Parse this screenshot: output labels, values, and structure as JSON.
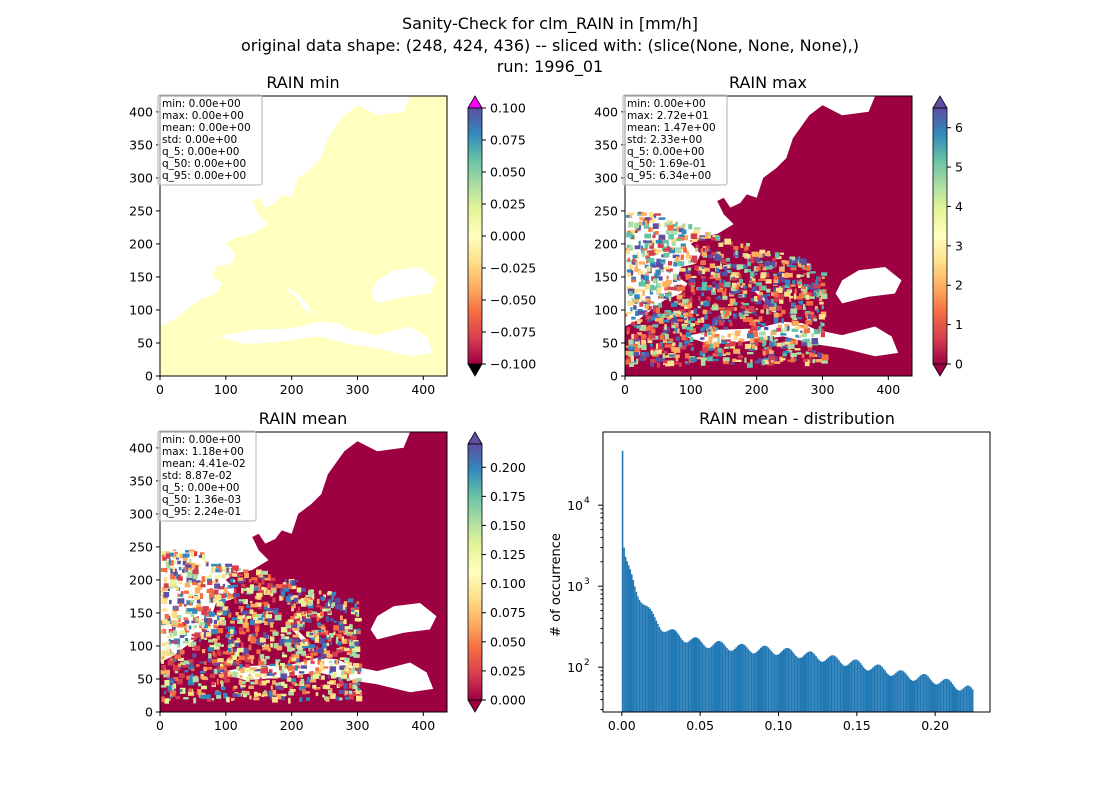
{
  "figure": {
    "suptitle": [
      "Sanity-Check for clm_RAIN in [mm/h]",
      "original data shape: (248, 424, 436) -- sliced with: (slice(None, None, None),)",
      "run: 1996_01"
    ]
  },
  "panels": {
    "min": {
      "title": "RAIN min",
      "xticks": [
        "0",
        "100",
        "200",
        "300",
        "400"
      ],
      "yticks": [
        "0",
        "50",
        "100",
        "150",
        "200",
        "250",
        "300",
        "350",
        "400"
      ],
      "stats": [
        "min: 0.00e+00",
        "max: 0.00e+00",
        "mean: 0.00e+00",
        "std: 0.00e+00",
        "q_5: 0.00e+00",
        "q_50: 0.00e+00",
        "q_95: 0.00e+00"
      ],
      "colorbar": {
        "ticks": [
          "0.100",
          "0.075",
          "0.050",
          "0.025",
          "0.000",
          "−0.025",
          "−0.050",
          "−0.075",
          "−0.100"
        ],
        "range": [
          -0.1,
          0.1
        ],
        "extend_top_color": "#ff00ff",
        "extend_bottom_color": "#000000"
      },
      "fill_color": "#ffffbf"
    },
    "max": {
      "title": "RAIN max",
      "xticks": [
        "0",
        "100",
        "200",
        "300",
        "400"
      ],
      "yticks": [
        "0",
        "50",
        "100",
        "150",
        "200",
        "250",
        "300",
        "350",
        "400"
      ],
      "stats": [
        "min: 0.00e+00",
        "max: 2.72e+01",
        "mean: 1.47e+00",
        "std: 2.33e+00",
        "q_5: 0.00e+00",
        "q_50: 1.69e-01",
        "q_95: 6.34e+00"
      ],
      "colorbar": {
        "ticks": [
          "6",
          "5",
          "4",
          "3",
          "2",
          "1",
          "0"
        ],
        "range": [
          0,
          6.5
        ]
      }
    },
    "mean": {
      "title": "RAIN mean",
      "xticks": [
        "0",
        "100",
        "200",
        "300",
        "400"
      ],
      "yticks": [
        "0",
        "50",
        "100",
        "150",
        "200",
        "250",
        "300",
        "350",
        "400"
      ],
      "stats": [
        "min: 0.00e+00",
        "max: 1.18e+00",
        "mean: 4.41e-02",
        "std: 8.87e-02",
        "q_5: 0.00e+00",
        "q_50: 1.36e-03",
        "q_95: 2.24e-01"
      ],
      "colorbar": {
        "ticks": [
          "0.200",
          "0.175",
          "0.150",
          "0.125",
          "0.100",
          "0.075",
          "0.050",
          "0.025",
          "0.000"
        ],
        "range": [
          0,
          0.22
        ]
      }
    },
    "hist": {
      "title": "RAIN mean - distribution",
      "ylabel": "# of occurrence",
      "xticks": [
        "0.00",
        "0.05",
        "0.10",
        "0.15",
        "0.20"
      ],
      "yticks": [
        "10",
        "10",
        "10"
      ],
      "ytick_exponents": [
        "2",
        "3",
        "4"
      ]
    }
  },
  "colormap": {
    "name": "Spectral",
    "stops": [
      "#9e0142",
      "#d53e4f",
      "#f46d43",
      "#fdae61",
      "#fee08b",
      "#ffffbf",
      "#e6f598",
      "#abdda4",
      "#66c2a5",
      "#3288bd",
      "#5e4fa2"
    ]
  },
  "chart_data": [
    {
      "type": "heatmap",
      "title": "RAIN min",
      "xlim": [
        0,
        436
      ],
      "ylim": [
        0,
        424
      ],
      "color_range": [
        -0.1,
        0.1
      ]
    },
    {
      "type": "heatmap",
      "title": "RAIN max",
      "xlim": [
        0,
        436
      ],
      "ylim": [
        0,
        424
      ],
      "color_range": [
        0,
        6.5
      ]
    },
    {
      "type": "heatmap",
      "title": "RAIN mean",
      "xlim": [
        0,
        436
      ],
      "ylim": [
        0,
        424
      ],
      "color_range": [
        0,
        0.22
      ]
    },
    {
      "type": "bar",
      "title": "RAIN mean - distribution",
      "ylabel": "# of occurrence",
      "xlim": [
        -0.012,
        0.235
      ],
      "ylim": [
        28,
        80000
      ],
      "yscale": "log",
      "bar_color": "#1f77b4",
      "x": [
        0.0,
        0.001,
        0.002,
        0.003,
        0.004,
        0.005,
        0.006,
        0.007,
        0.008,
        0.009,
        0.01,
        0.012,
        0.015,
        0.018,
        0.021,
        0.025,
        0.03,
        0.035,
        0.04,
        0.045,
        0.05,
        0.06,
        0.07,
        0.08,
        0.09,
        0.1,
        0.11,
        0.12,
        0.13,
        0.14,
        0.15,
        0.16,
        0.17,
        0.18,
        0.19,
        0.2,
        0.21,
        0.22,
        0.224
      ],
      "values": [
        47000,
        2700,
        2100,
        1800,
        1600,
        1450,
        1300,
        1150,
        1000,
        900,
        820,
        700,
        560,
        460,
        380,
        320,
        275,
        250,
        230,
        215,
        200,
        190,
        180,
        170,
        165,
        160,
        150,
        140,
        130,
        120,
        110,
        100,
        90,
        80,
        75,
        70,
        62,
        55,
        48
      ]
    }
  ]
}
